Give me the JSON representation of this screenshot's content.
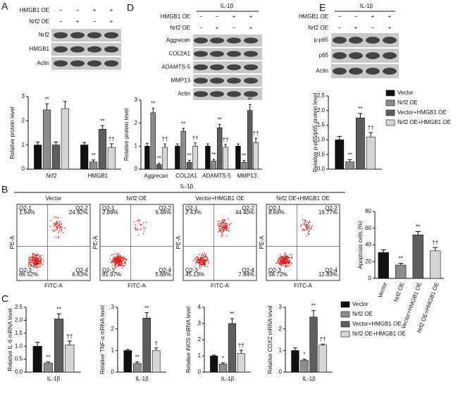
{
  "panel_letters": [
    "A",
    "B",
    "C",
    "D",
    "E"
  ],
  "blots": [
    {
      "header": null,
      "treatments": [
        {
          "label": "HMGB1 OE",
          "signs": [
            "−",
            "−",
            "+",
            "+"
          ]
        },
        {
          "label": "Nrf2 OE",
          "signs": [
            "−",
            "+",
            "−",
            "+"
          ]
        }
      ],
      "rows": [
        "Nrf2",
        "HMGB1",
        "Actin"
      ]
    },
    {
      "header": "IL-1β",
      "treatments": [
        {
          "label": "HMGB1 OE",
          "signs": [
            "−",
            "−",
            "+",
            "+"
          ]
        },
        {
          "label": "Nrf2 OE",
          "signs": [
            "−",
            "+",
            "−",
            "+"
          ]
        }
      ],
      "rows": [
        "Aggrecan",
        "COL2A1",
        "ADAMTS-5",
        "MMP13",
        "Actin"
      ]
    },
    {
      "header": "IL-1β",
      "treatments": [
        {
          "label": "HMGB1 OE",
          "signs": [
            "−",
            "−",
            "+",
            "+"
          ]
        },
        {
          "label": "Nrf2 OE",
          "signs": [
            "−",
            "+",
            "−",
            "+"
          ]
        }
      ],
      "rows": [
        "p-p65",
        "p65",
        "Actin"
      ]
    }
  ],
  "flow": {
    "header": "IL-1β",
    "x_label": "FITC-A",
    "y_label": "PE-A",
    "plots": [
      {
        "title": "Vector",
        "quadrants": [
          {
            "name": "Q2-1",
            "percent": "1.94%"
          },
          {
            "name": "Q2-2",
            "percent": "24.92%"
          },
          {
            "name": "Q2-3",
            "percent": "66.52%"
          },
          {
            "name": "Q2-4",
            "percent": "6.63%"
          }
        ]
      },
      {
        "title": "Nrf2 OE",
        "quadrants": [
          {
            "name": "Q2-1",
            "percent": "2.89%"
          },
          {
            "name": "Q2-2",
            "percent": "9.46%"
          },
          {
            "name": "Q2-3",
            "percent": "81.97%"
          },
          {
            "name": "Q2-4",
            "percent": "5.68%"
          }
        ]
      },
      {
        "title": "Vector+HMGB1 OE",
        "quadrants": [
          {
            "name": "Q2-1",
            "percent": "2.43%"
          },
          {
            "name": "Q2-2",
            "percent": "44.40%"
          },
          {
            "name": "Q2-3",
            "percent": "45.13%"
          },
          {
            "name": "Q2-4",
            "percent": "7.84%"
          }
        ]
      },
      {
        "title": "Nrf2 OE+HMGB1 OE",
        "quadrants": [
          {
            "name": "Q2-1",
            "percent": "8.69%"
          },
          {
            "name": "Q2-2",
            "percent": "19.77%"
          },
          {
            "name": "Q2-3",
            "percent": "58.72%"
          },
          {
            "name": "Q2-4",
            "percent": "12.83%"
          }
        ]
      }
    ]
  },
  "chart_data": [
    {
      "type": "bar",
      "ylabel": "Relative protein level",
      "categories": [
        "Nrf2",
        "HMGB1"
      ],
      "ylim": [
        0,
        3
      ],
      "yticks": [
        0,
        1,
        2,
        3
      ],
      "series": [
        {
          "color": "#111111",
          "values": [
            1.0,
            1.0
          ],
          "errors": [
            0.12,
            0.1
          ],
          "annotations": [
            null,
            null
          ]
        },
        {
          "color": "#8c8c8c",
          "values": [
            2.45,
            0.3
          ],
          "errors": [
            0.25,
            0.08
          ],
          "annotations": [
            "**",
            "**"
          ]
        },
        {
          "color": "#5e5e5e",
          "values": [
            1.0,
            1.65
          ],
          "errors": [
            0.12,
            0.15
          ],
          "annotations": [
            null,
            "**"
          ]
        },
        {
          "color": "#d6d6d6",
          "values": [
            2.5,
            0.9
          ],
          "errors": [
            0.3,
            0.15
          ],
          "annotations": [
            null,
            "††"
          ]
        }
      ]
    },
    {
      "type": "bar",
      "ylabel": "Relative protein level",
      "categories": [
        "Aggrecan",
        "COL2A1",
        "ADAMTS-5",
        "MMP13"
      ],
      "ylim": [
        0,
        3
      ],
      "yticks": [
        0,
        1,
        2,
        3
      ],
      "series": [
        {
          "color": "#111111",
          "values": [
            1.0,
            1.0,
            1.0,
            1.0
          ],
          "errors": [
            0.12,
            0.1,
            0.1,
            0.1
          ],
          "annotations": [
            null,
            null,
            null,
            null
          ]
        },
        {
          "color": "#8c8c8c",
          "values": [
            2.45,
            1.65,
            0.35,
            0.3
          ],
          "errors": [
            0.2,
            0.12,
            0.08,
            0.08
          ],
          "annotations": [
            "**",
            "**",
            "**",
            "**"
          ]
        },
        {
          "color": "#5e5e5e",
          "values": [
            0.2,
            0.3,
            1.8,
            2.55
          ],
          "errors": [
            0.06,
            0.08,
            0.15,
            0.25
          ],
          "annotations": [
            "**",
            "**",
            "**",
            "**"
          ]
        },
        {
          "color": "#d6d6d6",
          "values": [
            0.95,
            1.0,
            0.95,
            1.15
          ],
          "errors": [
            0.15,
            0.15,
            0.12,
            0.2
          ],
          "annotations": [
            "††",
            "††",
            "††",
            "††"
          ]
        }
      ]
    },
    {
      "type": "bar",
      "ylabel": "Relative p-p65/p65 protein level",
      "categories": [
        null
      ],
      "ylim": [
        0,
        2.5
      ],
      "yticks": [
        {
          "value": 0,
          "label": "0.0"
        },
        0.5,
        {
          "value": 1,
          "label": "1.0"
        },
        1.5,
        {
          "value": 2,
          "label": "2.0"
        },
        2.5
      ],
      "series": [
        {
          "name": "Vector",
          "color": "#111111",
          "values": [
            1.0
          ],
          "errors": [
            0.12
          ],
          "annotations": [
            null
          ]
        },
        {
          "name": "Nrf2 OE",
          "color": "#8c8c8c",
          "values": [
            0.25
          ],
          "errors": [
            0.08
          ],
          "annotations": [
            "**"
          ]
        },
        {
          "name": "Vector+HMGB1 OE",
          "color": "#5e5e5e",
          "values": [
            1.75
          ],
          "errors": [
            0.15
          ],
          "annotations": [
            "**"
          ]
        },
        {
          "name": "Nrf2 OE+HMGB1 OE",
          "color": "#d6d6d6",
          "values": [
            1.1
          ],
          "errors": [
            0.15
          ],
          "annotations": [
            "††"
          ]
        }
      ]
    },
    {
      "type": "bar",
      "ylabel": "Apoptosis cells (%)",
      "categories": [
        "Vector",
        "Nrf2 OE",
        "Vector+HMGB1 OE",
        "Nrf2 OE+HMGB1 OE"
      ],
      "values": [
        31,
        16,
        52,
        33
      ],
      "errors": [
        3,
        2,
        4,
        4
      ],
      "annotations": [
        null,
        "**",
        "**",
        "††"
      ],
      "colors": [
        "#111111",
        "#8c8c8c",
        "#5e5e5e",
        "#d6d6d6"
      ],
      "ylim": [
        0,
        80
      ],
      "yticks": [
        0,
        20,
        40,
        60,
        80
      ]
    },
    {
      "type": "bar",
      "ylabel": "Relative IL-6 mRNA level",
      "categories": [
        "IL-1β"
      ],
      "ylim": [
        0,
        2.5
      ],
      "yticks": [
        {
          "value": 0,
          "label": "0.0"
        },
        0.5,
        {
          "value": 1,
          "label": "1.0"
        },
        1.5,
        {
          "value": 2,
          "label": "2.0"
        },
        2.5
      ],
      "series": [
        {
          "name": "Vector",
          "color": "#111111",
          "values": [
            1.0
          ],
          "errors": [
            0.15
          ],
          "annotations": [
            null
          ]
        },
        {
          "name": "Nrf2 OE",
          "color": "#8c8c8c",
          "values": [
            0.35
          ],
          "errors": [
            0.05
          ],
          "annotations": [
            "**"
          ]
        },
        {
          "name": "Vector+HMGB1 OE",
          "color": "#5e5e5e",
          "values": [
            2.05
          ],
          "errors": [
            0.2
          ],
          "annotations": [
            "**"
          ]
        },
        {
          "name": "Nrf2 OE+HMGB1 OE",
          "color": "#d6d6d6",
          "values": [
            1.05
          ],
          "errors": [
            0.15
          ],
          "annotations": [
            "††"
          ]
        }
      ]
    },
    {
      "type": "bar",
      "ylabel": "Relative TNF-α mRNA level",
      "categories": [
        "IL-1β"
      ],
      "ylim": [
        0,
        3
      ],
      "yticks": [
        0,
        1,
        2,
        3
      ],
      "series": [
        {
          "color": "#111111",
          "values": [
            1.0
          ],
          "errors": [
            0.05
          ],
          "annotations": [
            null
          ]
        },
        {
          "color": "#8c8c8c",
          "values": [
            0.4
          ],
          "errors": [
            0.08
          ],
          "annotations": [
            "**"
          ]
        },
        {
          "color": "#5e5e5e",
          "values": [
            2.5
          ],
          "errors": [
            0.25
          ],
          "annotations": [
            "**"
          ]
        },
        {
          "color": "#d6d6d6",
          "values": [
            1.0
          ],
          "errors": [
            0.12
          ],
          "annotations": [
            "†"
          ]
        }
      ]
    },
    {
      "type": "bar",
      "ylabel": "Relative iNOS mRNA level",
      "categories": [
        "IL-1β"
      ],
      "ylim": [
        0,
        4
      ],
      "yticks": [
        0,
        1,
        2,
        3,
        4
      ],
      "series": [
        {
          "color": "#111111",
          "values": [
            1.0
          ],
          "errors": [
            0.05
          ],
          "annotations": [
            null
          ]
        },
        {
          "color": "#8c8c8c",
          "values": [
            0.5
          ],
          "errors": [
            0.08
          ],
          "annotations": [
            "*"
          ]
        },
        {
          "color": "#5e5e5e",
          "values": [
            3.0
          ],
          "errors": [
            0.3
          ],
          "annotations": [
            "**"
          ]
        },
        {
          "color": "#d6d6d6",
          "values": [
            1.15
          ],
          "errors": [
            0.2
          ],
          "annotations": [
            "††"
          ]
        }
      ]
    },
    {
      "type": "bar",
      "ylabel": "Relative COX2 mRNA level",
      "categories": [
        "IL-1β"
      ],
      "ylim": [
        0,
        3
      ],
      "yticks": [
        0,
        1,
        2,
        3
      ],
      "series": [
        {
          "color": "#111111",
          "values": [
            1.0
          ],
          "errors": [
            0.12
          ],
          "annotations": [
            null
          ]
        },
        {
          "color": "#8c8c8c",
          "values": [
            0.55
          ],
          "errors": [
            0.05
          ],
          "annotations": [
            "*"
          ]
        },
        {
          "color": "#5e5e5e",
          "values": [
            2.55
          ],
          "errors": [
            0.3
          ],
          "annotations": [
            "**"
          ]
        },
        {
          "color": "#d6d6d6",
          "values": [
            1.25
          ],
          "errors": [
            0.05
          ],
          "annotations": [
            "††"
          ]
        }
      ]
    }
  ]
}
